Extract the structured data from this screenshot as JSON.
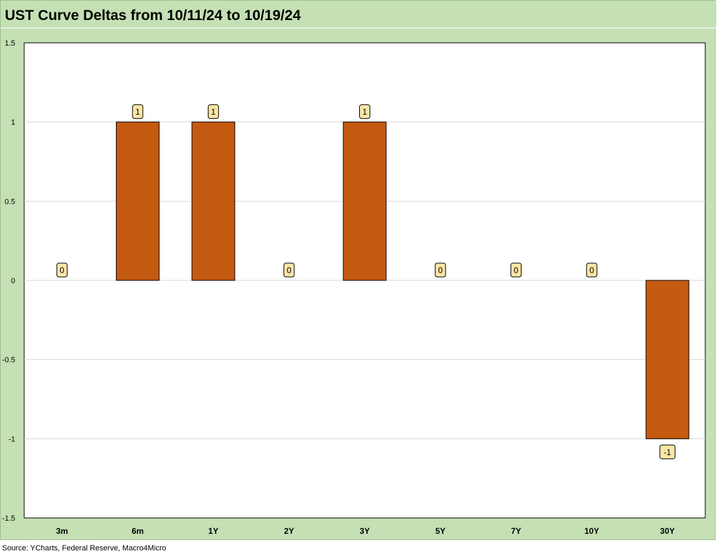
{
  "chart_data": {
    "type": "bar",
    "title": "UST Curve Deltas from 10/11/24 to 10/19/24",
    "categories": [
      "3m",
      "6m",
      "1Y",
      "2Y",
      "3Y",
      "5Y",
      "7Y",
      "10Y",
      "30Y"
    ],
    "series": [
      {
        "values": [
          0,
          1,
          1,
          0,
          1,
          0,
          0,
          0,
          -1
        ]
      }
    ],
    "data_labels": [
      "0",
      "1",
      "1",
      "0",
      "1",
      "0",
      "0",
      "0",
      "-1"
    ],
    "yticks": [
      "1.5",
      "1",
      "0.5",
      "0",
      "-0.5",
      "-1",
      "-1.5"
    ],
    "ylim": [
      -1.5,
      1.5
    ],
    "grid": true,
    "legend": "none",
    "colors": {
      "bar": "#c55a11",
      "label_box": "#fbe5a6",
      "frame": "#c5e0b4"
    }
  },
  "source": "Source: YCharts, Federal Reserve, Macro4Micro"
}
